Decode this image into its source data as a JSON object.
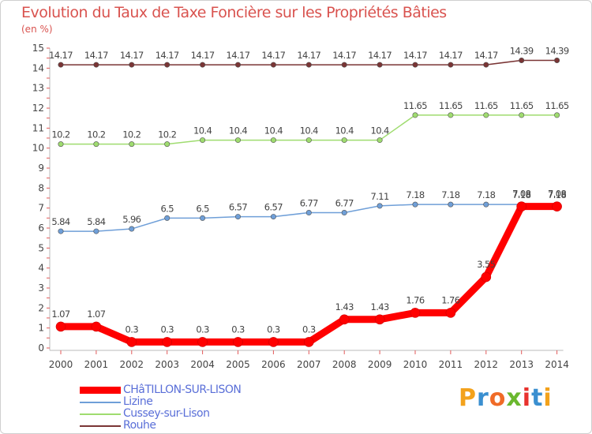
{
  "chart_data": {
    "type": "line",
    "title": "Evolution du Taux de Taxe Foncière sur les Propriétés Bâties",
    "unit_label": "(en %)",
    "xlabel": "",
    "ylabel": "",
    "ylim": [
      0,
      15
    ],
    "yticks": [
      0,
      1,
      2,
      3,
      4,
      5,
      6,
      7,
      8,
      9,
      10,
      11,
      12,
      13,
      14,
      15
    ],
    "categories": [
      "2000",
      "2001",
      "2002",
      "2003",
      "2004",
      "2005",
      "2006",
      "2007",
      "2008",
      "2009",
      "2010",
      "2011",
      "2012",
      "2013",
      "2014"
    ],
    "series": [
      {
        "name": "CHâTILLON-SUR-LISON",
        "color": "#ff0000",
        "values": [
          1.07,
          1.07,
          0.3,
          0.3,
          0.3,
          0.3,
          0.3,
          0.3,
          1.43,
          1.43,
          1.76,
          1.76,
          3.55,
          7.08,
          7.08
        ],
        "labels": [
          "1.07",
          "1.07",
          "0.3",
          "0.3",
          "0.3",
          "0.3",
          "0.3",
          "0.3",
          "1.43",
          "1.43",
          "1.76",
          "1.76",
          "3.55",
          "7.08",
          "7.08"
        ]
      },
      {
        "name": "Lizine",
        "color": "#6f9fd8",
        "values": [
          5.84,
          5.84,
          5.96,
          6.5,
          6.5,
          6.57,
          6.57,
          6.77,
          6.77,
          7.11,
          7.18,
          7.18,
          7.18,
          7.18,
          7.18
        ],
        "labels": [
          "5.84",
          "5.84",
          "5.96",
          "6.5",
          "6.5",
          "6.57",
          "6.57",
          "6.77",
          "6.77",
          "7.11",
          "7.18",
          "7.18",
          "7.18",
          "7.18",
          "7.18"
        ]
      },
      {
        "name": "Cussey-sur-Lison",
        "color": "#9fdc6f",
        "values": [
          10.2,
          10.2,
          10.2,
          10.2,
          10.4,
          10.4,
          10.4,
          10.4,
          10.4,
          10.4,
          11.65,
          11.65,
          11.65,
          11.65,
          11.65
        ],
        "labels": [
          "10.2",
          "10.2",
          "10.2",
          "10.2",
          "10.4",
          "10.4",
          "10.4",
          "10.4",
          "10.4",
          "10.4",
          "11.65",
          "11.65",
          "11.65",
          "11.65",
          "11.65"
        ]
      },
      {
        "name": "Rouhe",
        "color": "#7a3535",
        "values": [
          14.17,
          14.17,
          14.17,
          14.17,
          14.17,
          14.17,
          14.17,
          14.17,
          14.17,
          14.17,
          14.17,
          14.17,
          14.17,
          14.39,
          14.39
        ],
        "labels": [
          "14.17",
          "14.17",
          "14.17",
          "14.17",
          "14.17",
          "14.17",
          "14.17",
          "14.17",
          "14.17",
          "14.17",
          "14.17",
          "14.17",
          "14.17",
          "14.39",
          "14.39"
        ]
      }
    ],
    "legend_position": "bottom-left",
    "grid": false
  },
  "logo": {
    "text": "Proxiti",
    "letter_colors": [
      "#f3a21c",
      "#3a8fd0",
      "#f06b27",
      "#6ab82e",
      "#e8322d",
      "#3a8fd0",
      "#f3a21c"
    ]
  }
}
